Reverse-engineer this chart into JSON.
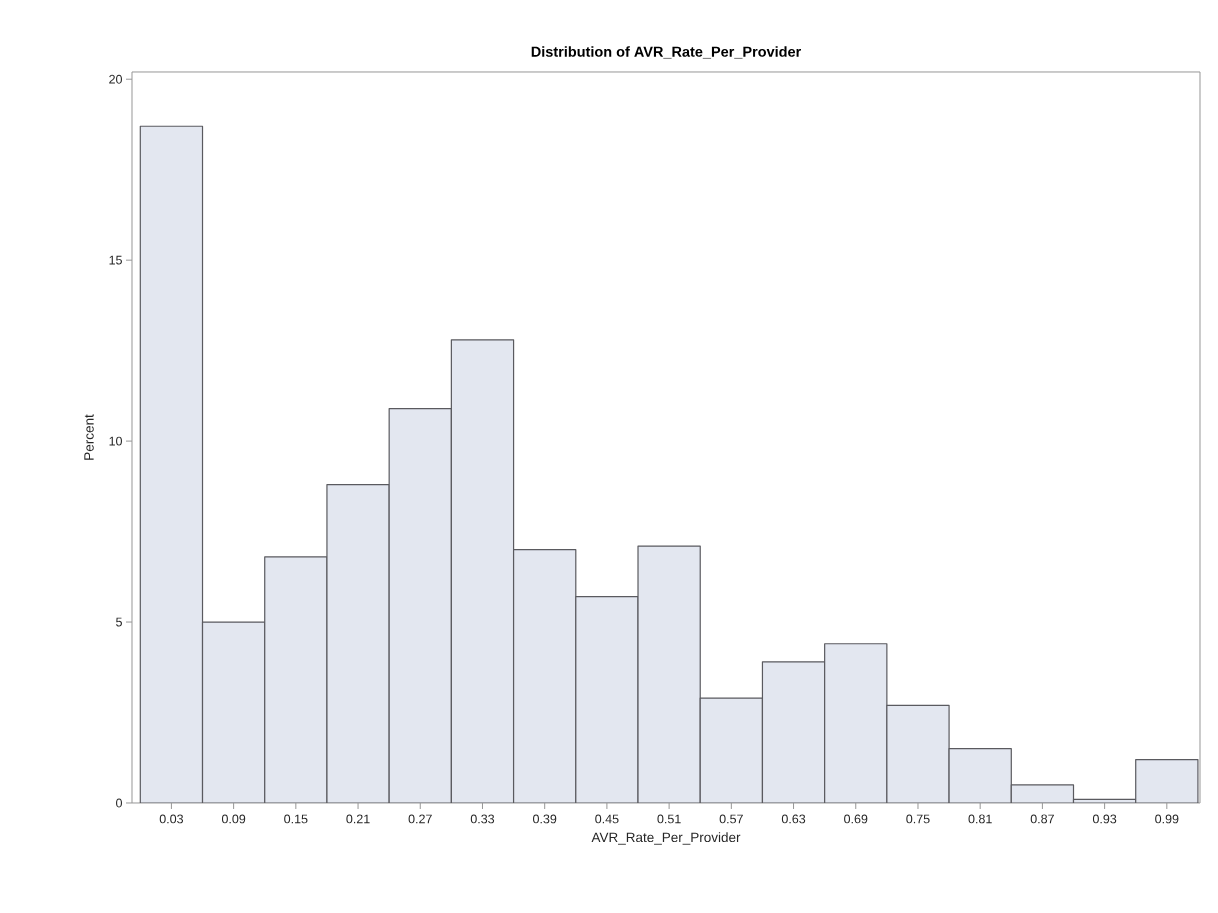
{
  "chart_data": {
    "type": "histogram",
    "title": "Distribution of AVR_Rate_Per_Provider",
    "xlabel": "AVR_Rate_Per_Provider",
    "ylabel": "Percent",
    "bins": [
      0,
      0.06,
      0.12,
      0.18,
      0.24,
      0.3,
      0.36,
      0.42,
      0.48,
      0.54,
      0.6,
      0.66,
      0.72,
      0.78,
      0.84,
      0.9,
      0.96,
      1.02
    ],
    "values": [
      18.7,
      5.0,
      6.8,
      8.8,
      10.9,
      12.8,
      7.0,
      5.7,
      7.1,
      2.9,
      3.9,
      4.4,
      2.7,
      1.5,
      0.5,
      0.1,
      1.2
    ],
    "color": "#e3e7f0",
    "xlim": [
      -0.008,
      1.022
    ],
    "ylim": [
      0,
      20.2
    ],
    "xticks": [
      {
        "value": 0.03,
        "label": "0.03"
      },
      {
        "value": 0.09,
        "label": "0.09"
      },
      {
        "value": 0.15,
        "label": "0.15"
      },
      {
        "value": 0.21,
        "label": "0.21"
      },
      {
        "value": 0.27,
        "label": "0.27"
      },
      {
        "value": 0.33,
        "label": "0.33"
      },
      {
        "value": 0.39,
        "label": "0.39"
      },
      {
        "value": 0.45,
        "label": "0.45"
      },
      {
        "value": 0.51,
        "label": "0.51"
      },
      {
        "value": 0.57,
        "label": "0.57"
      },
      {
        "value": 0.63,
        "label": "0.63"
      },
      {
        "value": 0.69,
        "label": "0.69"
      },
      {
        "value": 0.75,
        "label": "0.75"
      },
      {
        "value": 0.81,
        "label": "0.81"
      },
      {
        "value": 0.87,
        "label": "0.87"
      },
      {
        "value": 0.93,
        "label": "0.93"
      },
      {
        "value": 0.99,
        "label": "0.99"
      }
    ],
    "yticks": [
      0,
      5,
      10,
      15,
      20
    ]
  }
}
